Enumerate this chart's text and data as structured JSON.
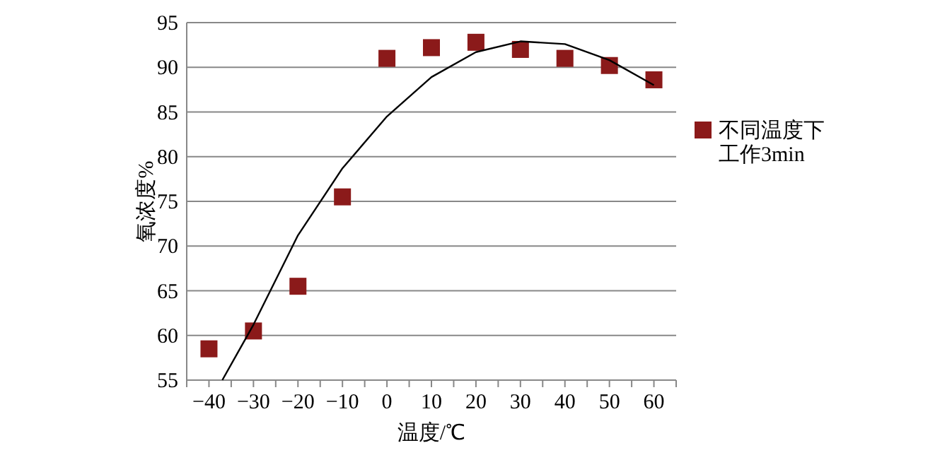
{
  "chart_data": {
    "type": "scatter",
    "xlabel": "温度/℃",
    "ylabel": "氧浓度%",
    "xlim": [
      -45,
      65
    ],
    "xticks": [
      {
        "value": -45,
        "label": null
      },
      -40,
      {
        "value": -35,
        "label": null
      },
      -30,
      {
        "value": -25,
        "label": null
      },
      -20,
      {
        "value": -15,
        "label": null
      },
      -10,
      {
        "value": -5,
        "label": null
      },
      0,
      {
        "value": 5,
        "label": null
      },
      10,
      {
        "value": 15,
        "label": null
      },
      20,
      {
        "value": 25,
        "label": null
      },
      30,
      {
        "value": 35,
        "label": null
      },
      40,
      {
        "value": 45,
        "label": null
      },
      50,
      {
        "value": 55,
        "label": null
      },
      60,
      {
        "value": 65,
        "label": null
      }
    ],
    "ylim": [
      55,
      95
    ],
    "yticks": [
      55,
      60,
      65,
      70,
      75,
      80,
      85,
      90,
      95
    ],
    "grid": "y",
    "legend": "right",
    "series": [
      {
        "name": "不同温度下工作3min",
        "color": "#8b1a1a",
        "marker": "square",
        "x": [
          -40,
          -30,
          -20,
          -10,
          0,
          10,
          20,
          30,
          40,
          50,
          60
        ],
        "values": [
          58.5,
          60.5,
          65.5,
          75.5,
          91,
          92.2,
          92.8,
          92,
          91,
          90.2,
          88.6
        ]
      },
      {
        "type": "line",
        "color": "#000000",
        "x": [
          -37,
          -30,
          -20,
          -10,
          0,
          10,
          20,
          30,
          40,
          50,
          60
        ],
        "values": [
          55,
          61.2,
          71.2,
          78.7,
          84.5,
          88.9,
          91.7,
          92.9,
          92.6,
          90.8,
          88
        ]
      }
    ]
  }
}
